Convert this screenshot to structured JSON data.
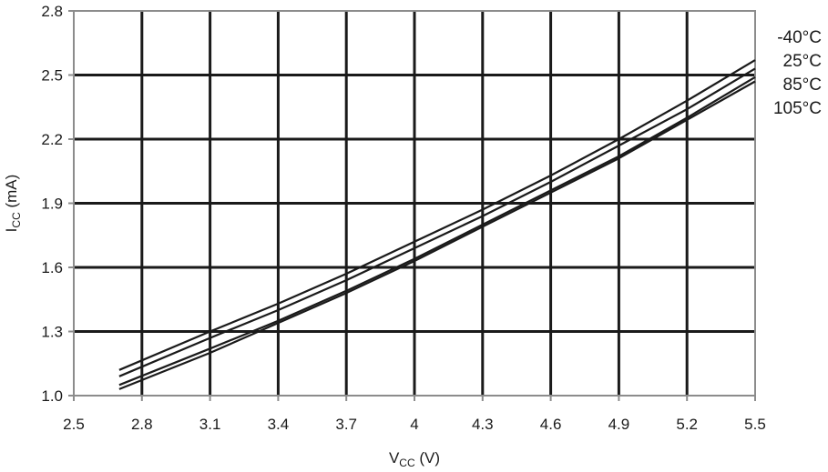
{
  "chart_data": {
    "type": "line",
    "xlabel": {
      "main": "V",
      "sub": "CC",
      "unit": " (V)"
    },
    "ylabel": {
      "main": "I",
      "sub": "CC",
      "unit": " (mA)"
    },
    "xlim": [
      2.5,
      5.5
    ],
    "ylim": [
      1.0,
      2.8
    ],
    "x_ticks": [
      "2.5",
      "2.8",
      "3.1",
      "3.4",
      "3.7",
      "4",
      "4.3",
      "4.6",
      "4.9",
      "5.2",
      "5.5"
    ],
    "y_ticks": [
      "1.0",
      "1.3",
      "1.6",
      "1.9",
      "2.2",
      "2.5",
      "2.8"
    ],
    "grid": true,
    "legend_placement": "right",
    "line_color": "#1a1a1a",
    "x": [
      2.7,
      3.1,
      3.4,
      3.7,
      4.0,
      4.3,
      4.6,
      4.9,
      5.2,
      5.5
    ],
    "series": [
      {
        "name": "-40°C",
        "values": [
          1.12,
          1.3,
          1.43,
          1.57,
          1.72,
          1.87,
          2.03,
          2.2,
          2.38,
          2.57
        ]
      },
      {
        "name": "25°C",
        "values": [
          1.09,
          1.27,
          1.4,
          1.54,
          1.69,
          1.84,
          2.0,
          2.17,
          2.34,
          2.53
        ]
      },
      {
        "name": "85°C",
        "values": [
          1.05,
          1.22,
          1.35,
          1.49,
          1.64,
          1.8,
          1.96,
          2.12,
          2.3,
          2.49
        ]
      },
      {
        "name": "105°C",
        "values": [
          1.03,
          1.2,
          1.34,
          1.48,
          1.63,
          1.79,
          1.95,
          2.11,
          2.29,
          2.47
        ]
      }
    ]
  }
}
